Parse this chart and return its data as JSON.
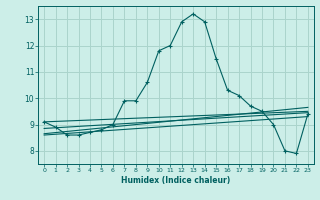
{
  "title": "",
  "xlabel": "Humidex (Indice chaleur)",
  "ylabel": "",
  "background_color": "#cceee8",
  "grid_color": "#aad4cc",
  "line_color": "#006060",
  "xlim": [
    -0.5,
    23.5
  ],
  "ylim": [
    7.5,
    13.5
  ],
  "xticks": [
    0,
    1,
    2,
    3,
    4,
    5,
    6,
    7,
    8,
    9,
    10,
    11,
    12,
    13,
    14,
    15,
    16,
    17,
    18,
    19,
    20,
    21,
    22,
    23
  ],
  "yticks": [
    8,
    9,
    10,
    11,
    12,
    13
  ],
  "main_x": [
    0,
    1,
    2,
    3,
    4,
    5,
    6,
    7,
    8,
    9,
    10,
    11,
    12,
    13,
    14,
    15,
    16,
    17,
    18,
    19,
    20,
    21,
    22,
    23
  ],
  "main_y": [
    9.1,
    8.9,
    8.6,
    8.6,
    8.7,
    8.8,
    9.0,
    9.9,
    9.9,
    10.6,
    11.8,
    12.0,
    12.9,
    13.2,
    12.9,
    11.5,
    10.3,
    10.1,
    9.7,
    9.5,
    9.0,
    8.0,
    7.9,
    9.4
  ],
  "line2_x": [
    0,
    23
  ],
  "line2_y": [
    9.1,
    9.5
  ],
  "line3_x": [
    0,
    23
  ],
  "line3_y": [
    8.85,
    9.45
  ],
  "line4_x": [
    0,
    23
  ],
  "line4_y": [
    8.65,
    9.65
  ],
  "line5_x": [
    0,
    23
  ],
  "line5_y": [
    8.6,
    9.3
  ]
}
